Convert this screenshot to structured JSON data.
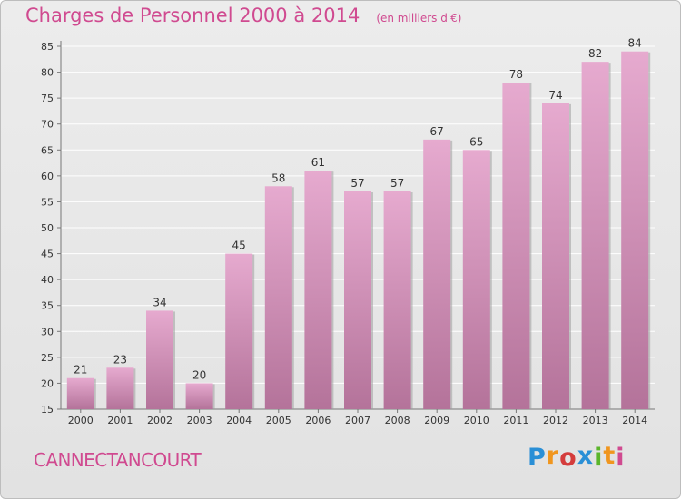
{
  "title": "Charges de Personnel 2000 à 2014",
  "subtitle": "(en milliers d'€)",
  "commune": "CANNECTANCOURT",
  "logo": {
    "letters": [
      "P",
      "r",
      "o",
      "x",
      "i",
      "t",
      "i"
    ]
  },
  "colors": {
    "accent": "#d04a90",
    "bar_top": "#e6aacf",
    "bar_bottom": "#b4739a",
    "bar_shadow": "#9e9e9e",
    "grid": "#ffffff",
    "logo": [
      "#2a8fd6",
      "#f0961e",
      "#d43c3c",
      "#2a8fd6",
      "#5bb52b",
      "#f0961e",
      "#d04a90"
    ]
  },
  "chart_data": {
    "type": "bar",
    "title": "Charges de Personnel 2000 à 2014",
    "subtitle": "(en milliers d'€)",
    "categories": [
      "2000",
      "2001",
      "2002",
      "2003",
      "2004",
      "2005",
      "2006",
      "2007",
      "2008",
      "2009",
      "2010",
      "2011",
      "2012",
      "2013",
      "2014"
    ],
    "values": [
      21,
      23,
      34,
      20,
      45,
      58,
      61,
      57,
      57,
      67,
      65,
      78,
      74,
      82,
      84
    ],
    "ylim": [
      15,
      85
    ],
    "yticks": [
      15,
      20,
      25,
      30,
      35,
      40,
      45,
      50,
      55,
      60,
      65,
      70,
      75,
      80,
      85
    ],
    "xlabel": "",
    "ylabel": "",
    "grid": true,
    "data_labels": true
  }
}
